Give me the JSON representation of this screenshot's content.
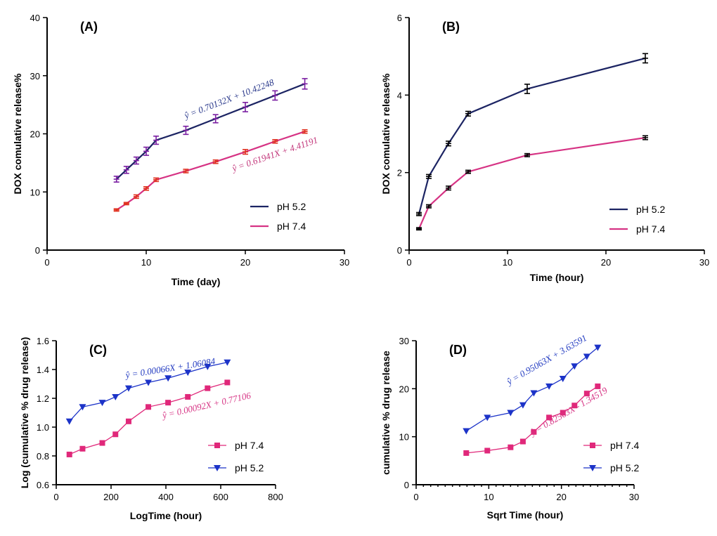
{
  "chart_data": [
    {
      "id": "A",
      "type": "line",
      "panel_label": "(A)",
      "xlabel": "Time (day)",
      "ylabel": "DOX comulative release%",
      "xlim": [
        0,
        30
      ],
      "ylim": [
        0,
        40
      ],
      "xticks": [
        0,
        10,
        20,
        30
      ],
      "yticks": [
        0,
        10,
        20,
        30,
        40
      ],
      "minor_x_ticks": false,
      "error_bars": true,
      "marker": "bar",
      "series": [
        {
          "name": "pH  5.2",
          "color": "#1c2463",
          "marker_color": "#7a1fa2",
          "x": [
            7,
            8,
            9,
            10,
            11,
            14,
            17,
            20,
            23,
            26
          ],
          "y": [
            12.2,
            13.8,
            15.4,
            17.0,
            18.9,
            20.6,
            22.6,
            24.6,
            26.6,
            28.6
          ],
          "err": [
            0.5,
            0.6,
            0.6,
            0.7,
            0.7,
            0.7,
            0.7,
            0.8,
            0.8,
            0.9
          ]
        },
        {
          "name": "pH  7.4",
          "color": "#d63384",
          "marker_color": "#e0301e",
          "x": [
            7,
            8,
            9,
            10,
            11,
            14,
            17,
            20,
            23,
            26
          ],
          "y": [
            6.9,
            8.0,
            9.2,
            10.6,
            12.1,
            13.6,
            15.2,
            16.9,
            18.7,
            20.4
          ],
          "err": [
            0.2,
            0.2,
            0.3,
            0.3,
            0.3,
            0.3,
            0.3,
            0.4,
            0.3,
            0.3
          ]
        }
      ],
      "annotations": [
        {
          "text": "ŷ = 0.70132X + 10.42248",
          "color": "#2b3a8c",
          "x": 14.0,
          "y": 22.6,
          "angle": -21
        },
        {
          "text": "ŷ = 0.61941X + 4.41191",
          "color": "#c2357a",
          "x": 18.8,
          "y": 13.5,
          "angle": -19
        }
      ],
      "legend_position": "bottom-right"
    },
    {
      "id": "B",
      "type": "line",
      "panel_label": "(B)",
      "xlabel": "Time (hour)",
      "ylabel": "DOX comulative release%",
      "xlim": [
        0,
        30
      ],
      "ylim": [
        0,
        6
      ],
      "xticks": [
        0,
        10,
        20,
        30
      ],
      "yticks": [
        0,
        2,
        4,
        6
      ],
      "minor_x_ticks": false,
      "error_bars": true,
      "marker": "bar",
      "series": [
        {
          "name": "pH  5.2",
          "color": "#1c2463",
          "marker_color": "#000000",
          "x": [
            1,
            2,
            4,
            6,
            12,
            24
          ],
          "y": [
            0.93,
            1.9,
            2.75,
            3.52,
            4.16,
            4.95
          ],
          "err": [
            0.04,
            0.05,
            0.06,
            0.06,
            0.12,
            0.12
          ]
        },
        {
          "name": "pH  7.4",
          "color": "#d63384",
          "marker_color": "#000000",
          "x": [
            1,
            2,
            4,
            6,
            12,
            24
          ],
          "y": [
            0.55,
            1.13,
            1.6,
            2.02,
            2.45,
            2.9
          ],
          "err": [
            0.03,
            0.04,
            0.05,
            0.04,
            0.04,
            0.05
          ]
        }
      ],
      "annotations": [],
      "legend_position": "bottom-right"
    },
    {
      "id": "C",
      "type": "line",
      "panel_label": "(C)",
      "xlabel": "LogTime (hour)",
      "ylabel": "Log (cumulative % drug release)",
      "xlim": [
        0,
        800
      ],
      "ylim": [
        0.6,
        1.6
      ],
      "xticks": [
        0,
        200,
        400,
        600,
        800
      ],
      "yticks": [
        0.6,
        0.8,
        1.0,
        1.2,
        1.4,
        1.6
      ],
      "ytick_labels": [
        "0.6",
        "0.8",
        "1.0",
        "1.2",
        "1.4",
        "1.6"
      ],
      "minor_x_ticks": false,
      "error_bars": false,
      "series": [
        {
          "name": "pH 7.4",
          "color": "#e0287a",
          "marker": "square",
          "x": [
            48,
            96,
            168,
            216,
            264,
            336,
            408,
            480,
            552,
            624
          ],
          "y": [
            0.81,
            0.85,
            0.89,
            0.95,
            1.04,
            1.14,
            1.17,
            1.21,
            1.27,
            1.31
          ]
        },
        {
          "name": "pH 5.2",
          "color": "#1c33c8",
          "marker": "triangle-down",
          "x": [
            48,
            96,
            168,
            216,
            264,
            336,
            408,
            480,
            552,
            624
          ],
          "y": [
            1.04,
            1.14,
            1.17,
            1.21,
            1.27,
            1.31,
            1.34,
            1.38,
            1.42,
            1.45
          ]
        }
      ],
      "annotations": [
        {
          "text": "ŷ = 0.00066X + 1.06084",
          "color": "#2039c0",
          "x": 255,
          "y": 1.34,
          "angle": -9
        },
        {
          "text": "ŷ = 0.00092X + 0.77106",
          "color": "#d63384",
          "x": 390,
          "y": 1.06,
          "angle": -13
        }
      ],
      "legend_position": "bottom-right"
    },
    {
      "id": "D",
      "type": "line",
      "panel_label": "(D)",
      "xlabel": "Sqrt Time (hour)",
      "ylabel": "cumulative % drug release",
      "xlim": [
        0,
        30
      ],
      "ylim": [
        0,
        30
      ],
      "xticks": [
        0,
        10,
        20,
        30
      ],
      "yticks": [
        0,
        10,
        20,
        30
      ],
      "minor_x_ticks": true,
      "error_bars": false,
      "series": [
        {
          "name": "pH 7.4",
          "color": "#e0287a",
          "marker": "square",
          "x": [
            6.9,
            9.8,
            13.0,
            14.7,
            16.2,
            18.3,
            20.2,
            21.8,
            23.5,
            25.0
          ],
          "y": [
            6.6,
            7.1,
            7.8,
            9.0,
            11.0,
            14.0,
            15.0,
            16.5,
            19.0,
            20.5
          ]
        },
        {
          "name": "pH 5.2",
          "color": "#1c33c8",
          "marker": "triangle-down",
          "x": [
            6.9,
            9.8,
            13.0,
            14.7,
            16.2,
            18.3,
            20.2,
            21.8,
            23.5,
            25.0
          ],
          "y": [
            11.2,
            14.0,
            15.0,
            16.6,
            19.1,
            20.5,
            22.1,
            24.7,
            26.7,
            28.6
          ]
        }
      ],
      "annotations": [
        {
          "text": "ŷ = 0.95063X + 3.63591",
          "color": "#2039c0",
          "x": 12.8,
          "y": 20.8,
          "angle": -30
        },
        {
          "text": "ŷ = 0.82563X - 1.34519",
          "color": "#d63384",
          "x": 16.0,
          "y": 10.2,
          "angle": -30
        }
      ],
      "legend_position": "bottom-right"
    }
  ]
}
